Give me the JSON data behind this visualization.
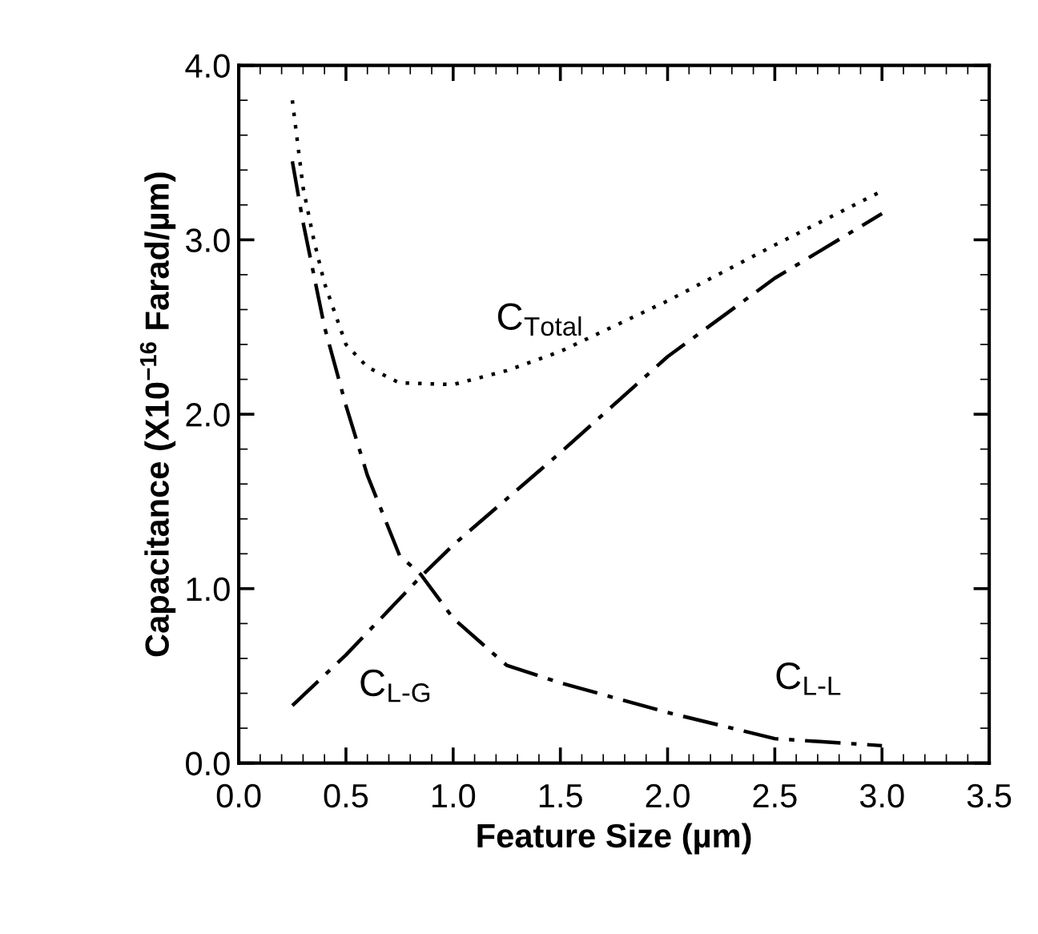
{
  "chart_data": {
    "type": "line",
    "xlabel": "Feature Size (µm)",
    "ylabel": "Capacitance (X10$^{−16}$ Farad/µm)",
    "xlim": [
      0,
      3.5
    ],
    "ylim": [
      0,
      4
    ],
    "xticks": [
      {
        "value": 0,
        "label": "0.0"
      },
      {
        "value": 0.5,
        "label": "0.5"
      },
      {
        "value": 1,
        "label": "1.0"
      },
      {
        "value": 1.5,
        "label": "1.5"
      },
      {
        "value": 2,
        "label": "2.0"
      },
      {
        "value": 2.5,
        "label": "2.5"
      },
      {
        "value": 3,
        "label": "3.0"
      },
      {
        "value": 3.5,
        "label": "3.5"
      }
    ],
    "yticks": [
      {
        "value": 0,
        "label": "0.0"
      },
      {
        "value": 1,
        "label": "1.0"
      },
      {
        "value": 2,
        "label": "2.0"
      },
      {
        "value": 3,
        "label": "3.0"
      },
      {
        "value": 4,
        "label": "4.0"
      }
    ],
    "grid": false,
    "legend": false,
    "marker": "none",
    "series": [
      {
        "name": "C$_{Total}$",
        "color": "#000000",
        "line_style": "dotted",
        "x": [
          0.25,
          0.3,
          0.35,
          0.4,
          0.5,
          0.6,
          0.75,
          1.0,
          1.25,
          1.5,
          2.0,
          2.5,
          3.0
        ],
        "values": [
          3.8,
          3.3,
          3.0,
          2.75,
          2.4,
          2.27,
          2.18,
          2.17,
          2.25,
          2.36,
          2.65,
          2.97,
          3.28
        ]
      },
      {
        "name": "C$_{L-G}$",
        "color": "#000000",
        "line_style": "dashdot",
        "x": [
          0.25,
          0.5,
          0.85,
          1.0,
          1.5,
          2.0,
          2.5,
          3.0
        ],
        "values": [
          0.33,
          0.62,
          1.07,
          1.25,
          1.78,
          2.33,
          2.78,
          3.15
        ]
      },
      {
        "name": "C$_{L-L}$",
        "color": "#000000",
        "line_style": "dashdot",
        "x": [
          0.25,
          0.3,
          0.35,
          0.4,
          0.5,
          0.6,
          0.75,
          0.85,
          1.0,
          1.25,
          1.5,
          2.0,
          2.5,
          3.0
        ],
        "values": [
          3.45,
          3.1,
          2.8,
          2.5,
          2.05,
          1.65,
          1.19,
          1.08,
          0.83,
          0.56,
          0.46,
          0.29,
          0.14,
          0.1
        ]
      }
    ]
  }
}
